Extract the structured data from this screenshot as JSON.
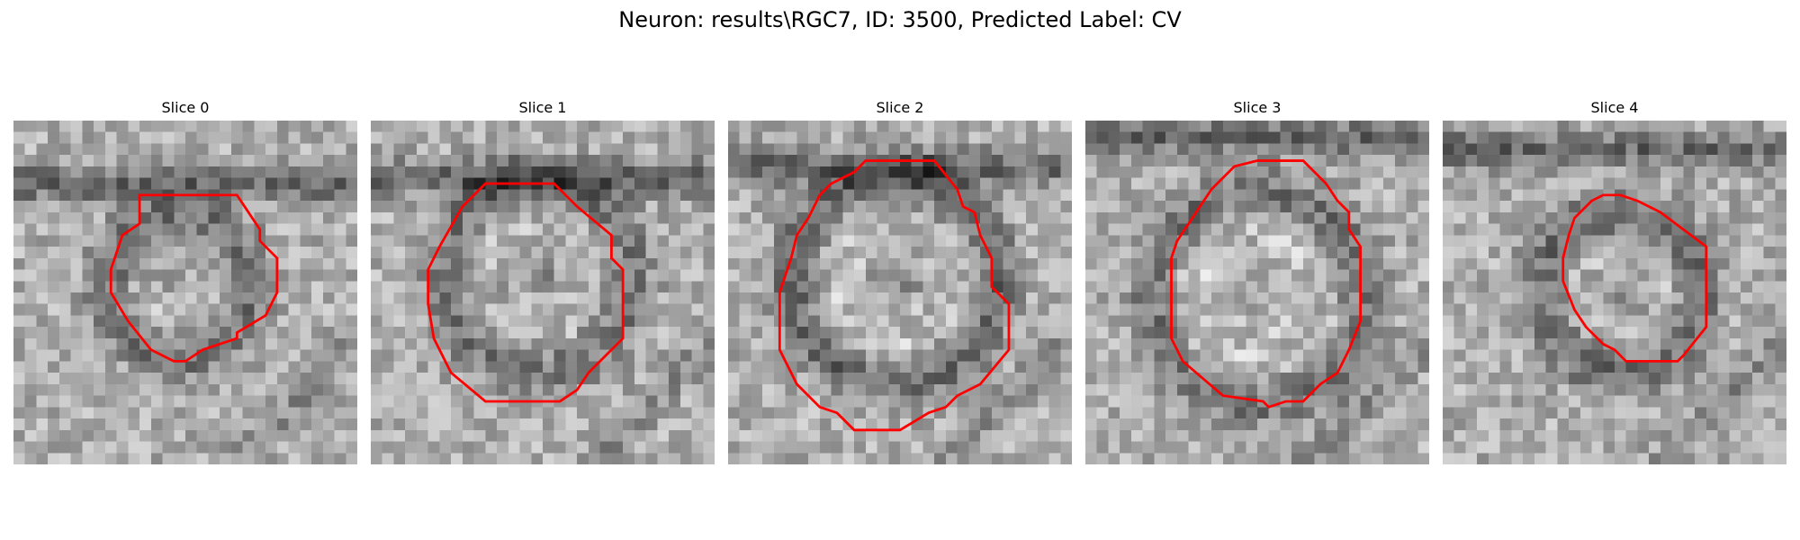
{
  "figure": {
    "title": "Neuron: results\\RGC7, ID: 3500, Predicted Label: CV"
  },
  "panels": [
    {
      "title": "Slice 0"
    },
    {
      "title": "Slice 1"
    },
    {
      "title": "Slice 2"
    },
    {
      "title": "Slice 3"
    },
    {
      "title": "Slice 4"
    }
  ],
  "colors": {
    "contour": "#ff0000",
    "background": "#ffffff"
  }
}
